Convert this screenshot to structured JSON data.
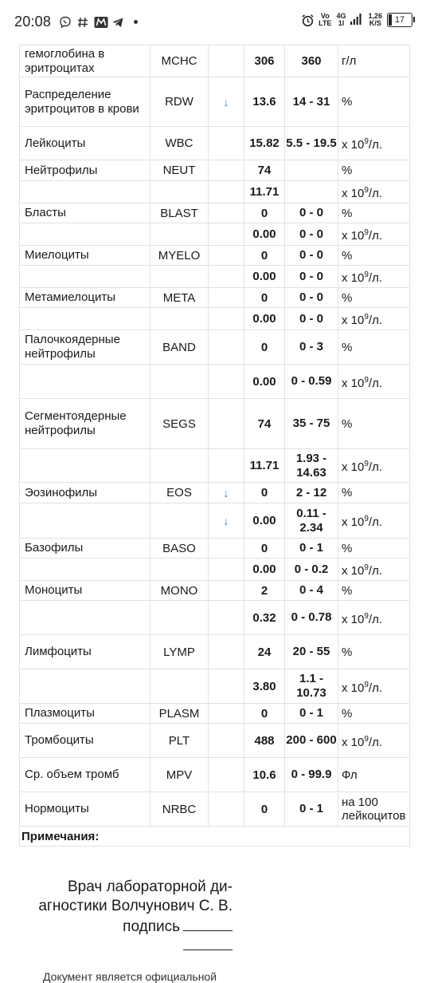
{
  "status_bar": {
    "time": "20:08",
    "network_label_1": "Vo",
    "network_label_2": "LTE",
    "signal_label_1": "4G",
    "signal_label_2": "1l",
    "speed_value": "1,26",
    "speed_unit": "K/S",
    "battery": "17"
  },
  "rows": [
    {
      "name": "гемоглобина в эритроцитах",
      "code": "MCHC",
      "arrow": "",
      "value": "306",
      "ref": "360",
      "unit": "г/л",
      "height": 40
    },
    {
      "name": "Распределение эритроцитов в крови",
      "code": "RDW",
      "arrow": "↓",
      "value": "13.6",
      "ref": "14 - 31",
      "unit": "%",
      "height": 62
    },
    {
      "name": "Лейкоциты",
      "code": "WBC",
      "arrow": "",
      "value": "15.82",
      "ref": "5.5 - 19.5",
      "unit": "x 10^9/л.",
      "height": 42
    },
    {
      "name": "Нейтрофилы",
      "code": "NEUT",
      "arrow": "",
      "value": "74",
      "ref": "",
      "unit": "%",
      "height": 26
    },
    {
      "name": "",
      "code": "",
      "arrow": "",
      "value": "11.71",
      "ref": "",
      "unit": "x 10^9/л.",
      "height": 28
    },
    {
      "name": "Бласты",
      "code": "BLAST",
      "arrow": "",
      "value": "0",
      "ref": "0 - 0",
      "unit": "%",
      "height": 25
    },
    {
      "name": "",
      "code": "",
      "arrow": "",
      "value": "0.00",
      "ref": "0 - 0",
      "unit": "x 10^9/л.",
      "height": 28
    },
    {
      "name": "Миелоциты",
      "code": "MYELO",
      "arrow": "",
      "value": "0",
      "ref": "0 - 0",
      "unit": "%",
      "height": 25
    },
    {
      "name": "",
      "code": "",
      "arrow": "",
      "value": "0.00",
      "ref": "0 - 0",
      "unit": "x 10^9/л.",
      "height": 28
    },
    {
      "name": "Метамиелоциты",
      "code": "META",
      "arrow": "",
      "value": "0",
      "ref": "0 - 0",
      "unit": "%",
      "height": 25
    },
    {
      "name": "",
      "code": "",
      "arrow": "",
      "value": "0.00",
      "ref": "0 - 0",
      "unit": "x 10^9/л.",
      "height": 28
    },
    {
      "name": "Палочкоядерные нейтрофилы",
      "code": "BAND",
      "arrow": "",
      "value": "0",
      "ref": "0 - 3",
      "unit": "%",
      "height": 43
    },
    {
      "name": "",
      "code": "",
      "arrow": "",
      "value": "0.00",
      "ref": "0 - 0.59",
      "unit": "x 10^9/л.",
      "height": 43
    },
    {
      "name": "Сегментоядерные нейтрофилы",
      "code": "SEGS",
      "arrow": "",
      "value": "74",
      "ref": "35 - 75",
      "unit": "%",
      "height": 63
    },
    {
      "name": "",
      "code": "",
      "arrow": "",
      "value": "11.71",
      "ref": "1.93 - 14.63",
      "unit": "x 10^9/л.",
      "height": 42
    },
    {
      "name": "Эозинофилы",
      "code": "EOS",
      "arrow": "↓",
      "value": "0",
      "ref": "2 - 12",
      "unit": "%",
      "height": 26
    },
    {
      "name": "",
      "code": "",
      "arrow": "↓",
      "value": "0.00",
      "ref": "0.11 - 2.34",
      "unit": "x 10^9/л.",
      "height": 44
    },
    {
      "name": "Базофилы",
      "code": "BASO",
      "arrow": "",
      "value": "0",
      "ref": "0 - 1",
      "unit": "%",
      "height": 25
    },
    {
      "name": "",
      "code": "",
      "arrow": "",
      "value": "0.00",
      "ref": "0 - 0.2",
      "unit": "x 10^9/л.",
      "height": 28
    },
    {
      "name": "Моноциты",
      "code": "MONO",
      "arrow": "",
      "value": "2",
      "ref": "0 - 4",
      "unit": "%",
      "height": 25
    },
    {
      "name": "",
      "code": "",
      "arrow": "",
      "value": "0.32",
      "ref": "0 - 0.78",
      "unit": "x 10^9/л.",
      "height": 43
    },
    {
      "name": "Лимфоциты",
      "code": "LYMP",
      "arrow": "",
      "value": "24",
      "ref": "20 - 55",
      "unit": "%",
      "height": 43
    },
    {
      "name": "",
      "code": "",
      "arrow": "",
      "value": "3.80",
      "ref": "1.1 - 10.73",
      "unit": "x 10^9/л.",
      "height": 43
    },
    {
      "name": "Плазмоциты",
      "code": "PLASM",
      "arrow": "",
      "value": "0",
      "ref": "0 - 1",
      "unit": "%",
      "height": 25
    },
    {
      "name": "Тромбоциты",
      "code": "PLT",
      "arrow": "",
      "value": "488",
      "ref": "200 - 600",
      "unit": "x 10^9/л.",
      "height": 43
    },
    {
      "name": "Ср. объем тромб",
      "code": "MPV",
      "arrow": "",
      "value": "10.6",
      "ref": "0 - 99.9",
      "unit": "Фл",
      "height": 43
    },
    {
      "name": "Нормоциты",
      "code": "NRBC",
      "arrow": "",
      "value": "0",
      "ref": "0 - 1",
      "unit": "на 100 лейкоцитов",
      "height": 43
    }
  ],
  "notes_label": "Примечания:",
  "footer": {
    "signature_line1": "Врач лабораторной ди-",
    "signature_line2": "агностики Волчунович С. В.",
    "signature_line3": "подпись",
    "document_note": "Документ является официальной"
  }
}
